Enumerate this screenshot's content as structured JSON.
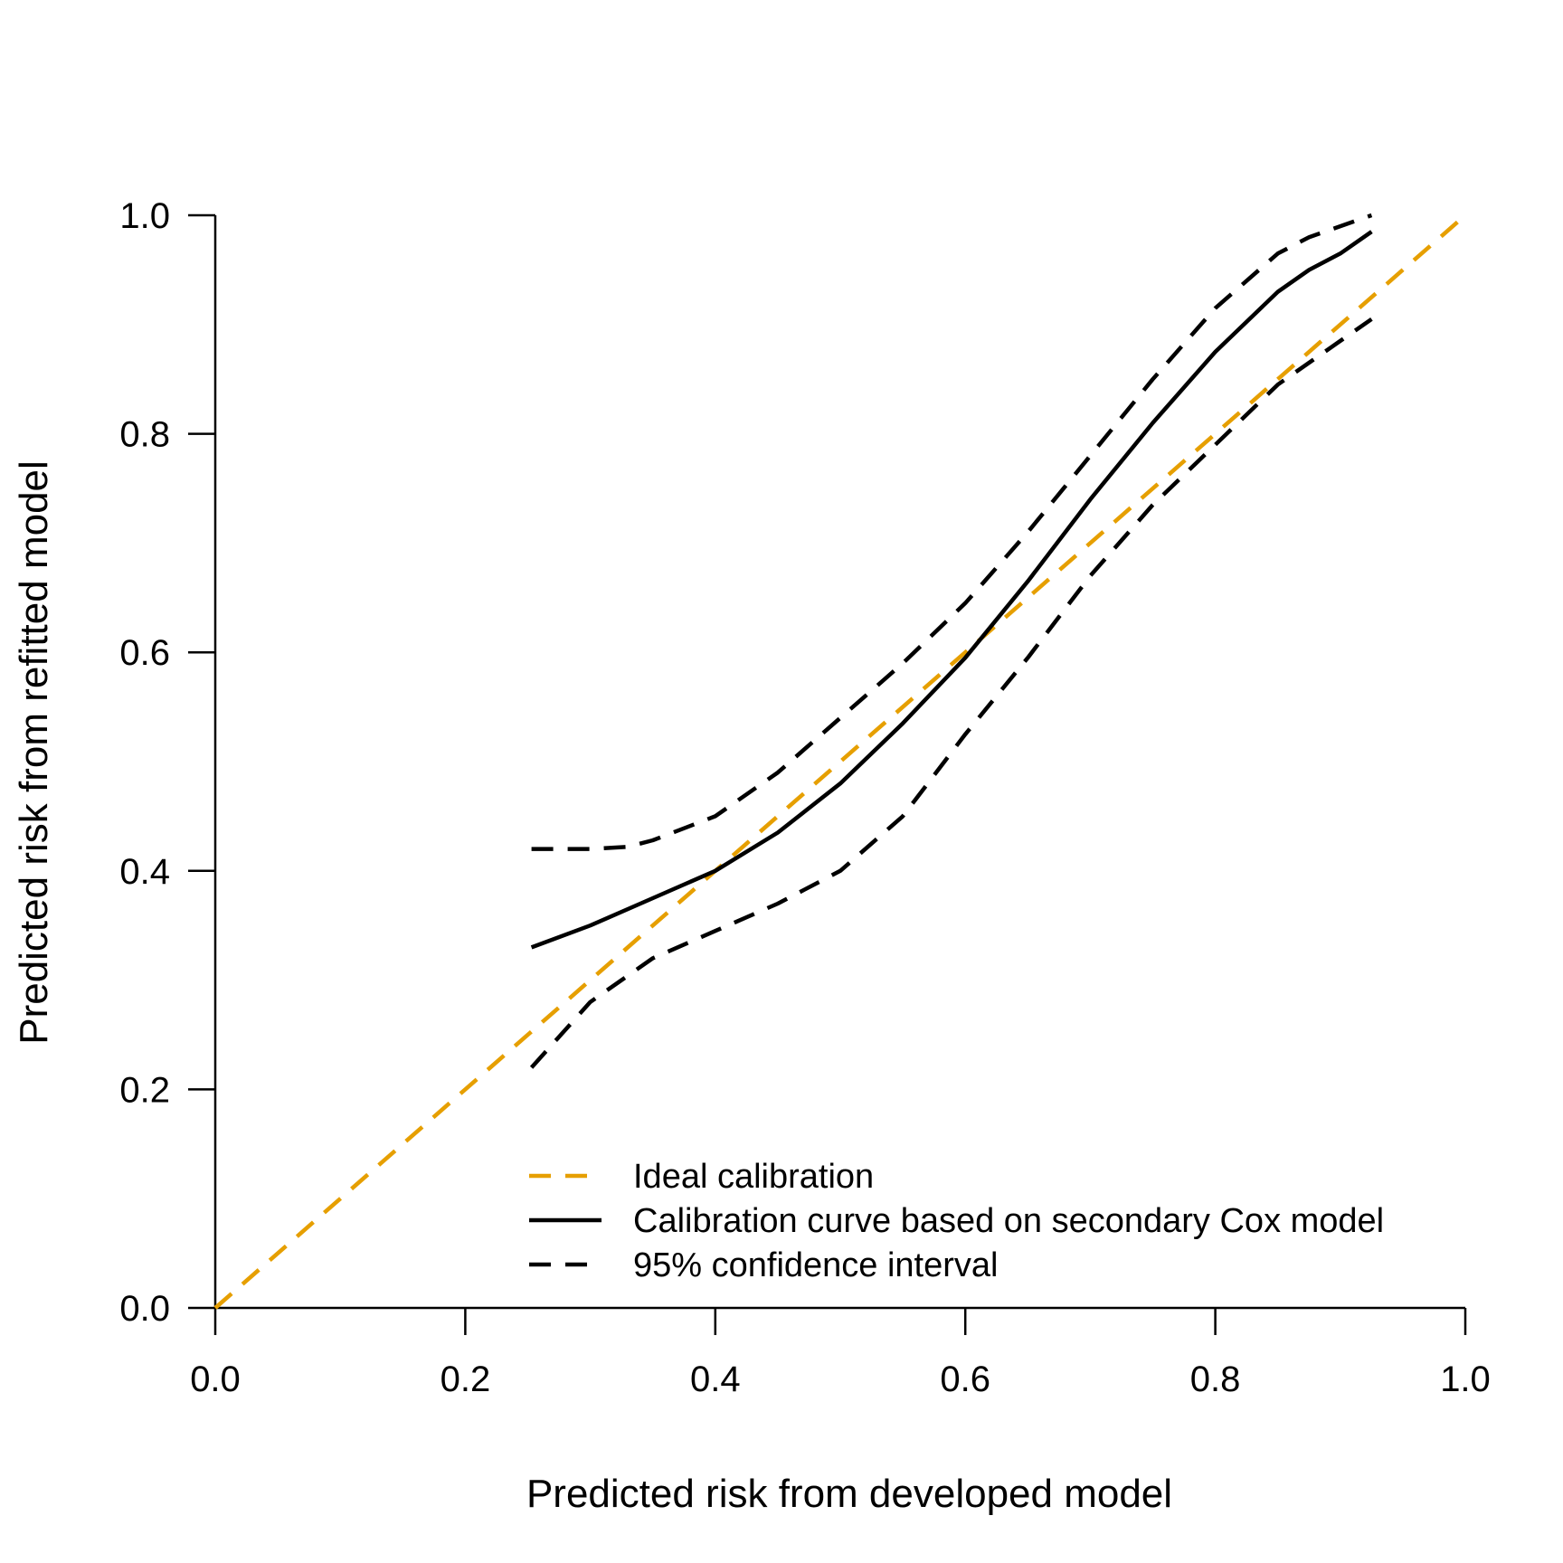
{
  "chart_data": {
    "type": "line",
    "title": "",
    "xlabel": "Predicted risk from developed model",
    "ylabel": "Predicted risk from refitted model",
    "xlim": [
      0,
      1
    ],
    "ylim": [
      0,
      1
    ],
    "xticks": [
      "0.0",
      "0.2",
      "0.4",
      "0.6",
      "0.8",
      "1.0"
    ],
    "yticks": [
      "0.0",
      "0.2",
      "0.4",
      "0.6",
      "0.8",
      "1.0"
    ],
    "grid": false,
    "legend_position": "bottom-right",
    "series": [
      {
        "name": "Ideal calibration",
        "color": "#E69F00",
        "style": "dashed",
        "x": [
          0,
          1
        ],
        "y": [
          0,
          1
        ]
      },
      {
        "name": "Calibration curve based on secondary Cox model",
        "color": "#000000",
        "style": "solid",
        "x": [
          0.253,
          0.3,
          0.35,
          0.4,
          0.45,
          0.5,
          0.55,
          0.6,
          0.65,
          0.7,
          0.75,
          0.8,
          0.85,
          0.875,
          0.9,
          0.925
        ],
        "y": [
          0.33,
          0.35,
          0.375,
          0.4,
          0.435,
          0.48,
          0.535,
          0.595,
          0.665,
          0.74,
          0.81,
          0.875,
          0.93,
          0.95,
          0.965,
          0.985
        ]
      },
      {
        "name": "95% confidence interval",
        "color": "#000000",
        "style": "dashed",
        "x": [
          0.253,
          0.3,
          0.33,
          0.35,
          0.4,
          0.45,
          0.5,
          0.55,
          0.6,
          0.65,
          0.7,
          0.75,
          0.8,
          0.85,
          0.875,
          0.9,
          0.925
        ],
        "y": [
          0.42,
          0.42,
          0.422,
          0.428,
          0.45,
          0.49,
          0.54,
          0.59,
          0.645,
          0.71,
          0.78,
          0.85,
          0.915,
          0.965,
          0.98,
          0.99,
          1.0
        ]
      },
      {
        "name": "",
        "color": "#000000",
        "style": "dashed",
        "x": [
          0.253,
          0.3,
          0.35,
          0.4,
          0.45,
          0.5,
          0.55,
          0.6,
          0.65,
          0.7,
          0.75,
          0.8,
          0.85,
          0.9,
          0.925
        ],
        "y": [
          0.22,
          0.28,
          0.32,
          0.345,
          0.37,
          0.4,
          0.45,
          0.525,
          0.595,
          0.67,
          0.735,
          0.79,
          0.845,
          0.885,
          0.905
        ]
      }
    ],
    "legend": [
      {
        "label": "Ideal calibration",
        "color": "#E69F00",
        "style": "dashed"
      },
      {
        "label": "Calibration curve based on secondary Cox model",
        "color": "#000000",
        "style": "solid"
      },
      {
        "label": "95% confidence interval",
        "color": "#000000",
        "style": "dashed"
      }
    ]
  }
}
